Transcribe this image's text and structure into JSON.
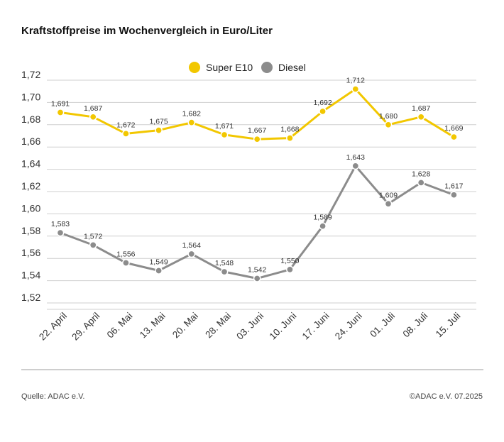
{
  "title": "Kraftstoffpreise im Wochenvergleich in Euro/Liter",
  "source": "Quelle: ADAC e.V.",
  "copyright": "©ADAC e.V. 07.2025",
  "chart_data": {
    "type": "line",
    "title": "Kraftstoffpreise im Wochenvergleich in Euro/Liter",
    "xlabel": "",
    "ylabel": "",
    "categories": [
      "22. April",
      "29. April",
      "06. Mai",
      "13. Mai",
      "20. Mai",
      "28. Mai",
      "03. Juni",
      "10. Juni",
      "17. Juni",
      "24. Juni",
      "01. Juli",
      "08. Juli",
      "15. Juli"
    ],
    "ylim": [
      1.52,
      1.72
    ],
    "yticks": [
      "1,72",
      "1,70",
      "1,68",
      "1,66",
      "1,64",
      "1,62",
      "1,60",
      "1,58",
      "1,56",
      "1,54",
      "1,52"
    ],
    "ytick_values": [
      1.72,
      1.7,
      1.68,
      1.66,
      1.64,
      1.62,
      1.6,
      1.58,
      1.56,
      1.54,
      1.52
    ],
    "grid": true,
    "legend_position": "top-center",
    "series": [
      {
        "name": "Super E10",
        "color": "#f2c700",
        "values": [
          1.691,
          1.687,
          1.672,
          1.675,
          1.682,
          1.671,
          1.667,
          1.668,
          1.692,
          1.712,
          1.68,
          1.687,
          1.669
        ],
        "labels": [
          "1,691",
          "1,687",
          "1,672",
          "1,675",
          "1,682",
          "1,671",
          "1,667",
          "1,668",
          "1,692",
          "1,712",
          "1,680",
          "1,687",
          "1,669"
        ]
      },
      {
        "name": "Diesel",
        "color": "#8c8c8c",
        "values": [
          1.583,
          1.572,
          1.556,
          1.549,
          1.564,
          1.548,
          1.542,
          1.55,
          1.589,
          1.643,
          1.609,
          1.628,
          1.617
        ],
        "labels": [
          "1,583",
          "1,572",
          "1,556",
          "1,549",
          "1,564",
          "1,548",
          "1,542",
          "1,550",
          "1,589",
          "1,643",
          "1,609",
          "1,628",
          "1,617"
        ]
      }
    ]
  }
}
